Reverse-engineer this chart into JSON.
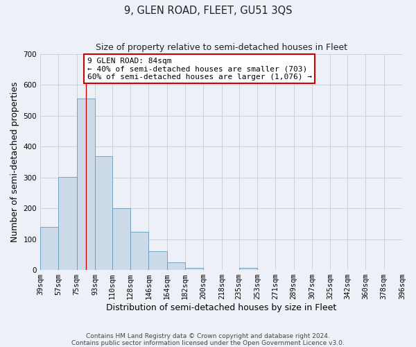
{
  "title": "9, GLEN ROAD, FLEET, GU51 3QS",
  "subtitle": "Size of property relative to semi-detached houses in Fleet",
  "xlabel": "Distribution of semi-detached houses by size in Fleet",
  "ylabel": "Number of semi-detached properties",
  "bin_labels": [
    "39sqm",
    "57sqm",
    "75sqm",
    "93sqm",
    "110sqm",
    "128sqm",
    "146sqm",
    "164sqm",
    "182sqm",
    "200sqm",
    "218sqm",
    "235sqm",
    "253sqm",
    "271sqm",
    "289sqm",
    "307sqm",
    "325sqm",
    "342sqm",
    "360sqm",
    "378sqm",
    "396sqm"
  ],
  "bin_edges": [
    39,
    57,
    75,
    93,
    110,
    128,
    146,
    164,
    182,
    200,
    218,
    235,
    253,
    271,
    289,
    307,
    325,
    342,
    360,
    378,
    396
  ],
  "bar_heights": [
    140,
    302,
    557,
    370,
    200,
    125,
    62,
    25,
    8,
    0,
    0,
    8,
    0,
    0,
    0,
    0,
    0,
    0,
    0,
    0
  ],
  "bar_color": "#cddaea",
  "bar_edge_color": "#6699bb",
  "vline_x": 84,
  "vline_color": "#cc0000",
  "ylim": [
    0,
    700
  ],
  "yticks": [
    0,
    100,
    200,
    300,
    400,
    500,
    600,
    700
  ],
  "annotation_title": "9 GLEN ROAD: 84sqm",
  "annotation_line1": "← 40% of semi-detached houses are smaller (703)",
  "annotation_line2": "60% of semi-detached houses are larger (1,076) →",
  "annotation_box_color": "#ffffff",
  "annotation_box_edge": "#cc0000",
  "footer1": "Contains HM Land Registry data © Crown copyright and database right 2024.",
  "footer2": "Contains public sector information licensed under the Open Government Licence v3.0.",
  "bg_color": "#edf1f7",
  "grid_color": "#c5cdd8",
  "title_fontsize": 10.5,
  "subtitle_fontsize": 9,
  "axis_label_fontsize": 9,
  "tick_fontsize": 7.5,
  "footer_fontsize": 6.5,
  "annotation_fontsize": 8
}
